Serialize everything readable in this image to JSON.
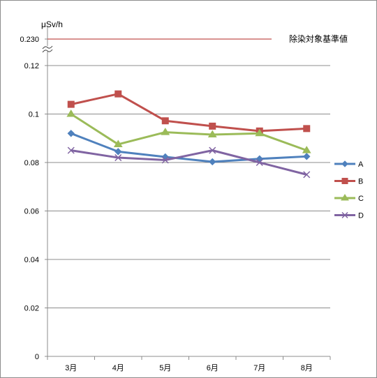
{
  "chart_data": {
    "type": "line",
    "title": "",
    "xlabel": "",
    "ylabel": "μSv/h",
    "categories": [
      "3月",
      "4月",
      "5月",
      "6月",
      "7月",
      "8月"
    ],
    "ylim": [
      0,
      0.12
    ],
    "yticks": [
      "0",
      "0.02",
      "0.04",
      "0.06",
      "0.08",
      "0.1",
      "0.12"
    ],
    "y_axis_break": true,
    "grid": true,
    "legend_position": "right",
    "threshold": {
      "value": 0.23,
      "label": "0.230",
      "name": "除染対象基準値",
      "color": "#c0504d"
    },
    "series": [
      {
        "name": "A",
        "color": "#4f81bd",
        "marker": "diamond",
        "values": [
          0.092,
          0.0845,
          0.0823,
          0.0803,
          0.0815,
          0.0825
        ]
      },
      {
        "name": "B",
        "color": "#c0504d",
        "marker": "square",
        "values": [
          0.104,
          0.1083,
          0.0972,
          0.095,
          0.093,
          0.094
        ]
      },
      {
        "name": "C",
        "color": "#9bbb59",
        "marker": "triangle",
        "values": [
          0.1,
          0.0875,
          0.0925,
          0.0915,
          0.092,
          0.085
        ]
      },
      {
        "name": "D",
        "color": "#8064a2",
        "marker": "x",
        "values": [
          0.085,
          0.082,
          0.081,
          0.085,
          0.08,
          0.075
        ]
      }
    ]
  }
}
